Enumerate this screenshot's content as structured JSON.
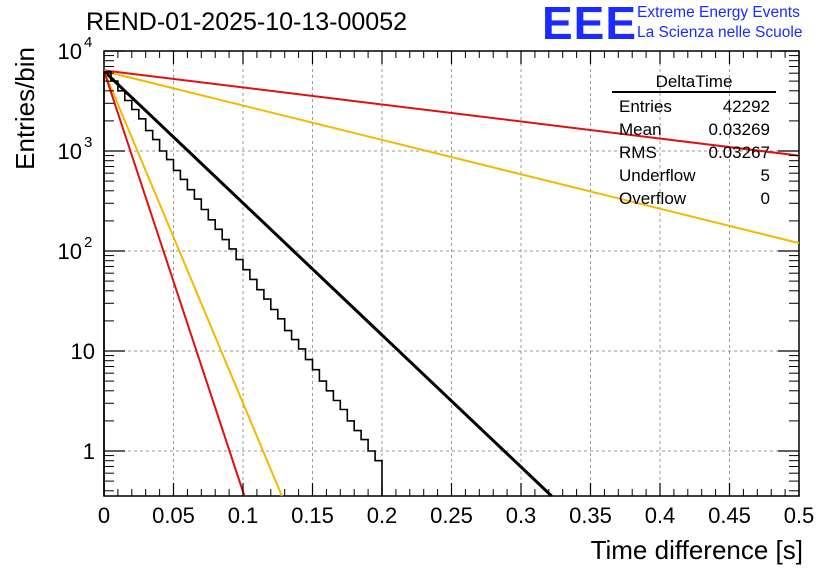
{
  "header": {
    "run_title": "REND-01-2025-10-13-00052",
    "logo_text": "EEE",
    "logo_line1": "Extreme Energy Events",
    "logo_line2": "La Scienza nelle Scuole"
  },
  "stats": {
    "title": "DeltaTime",
    "rows": [
      {
        "label": "Entries",
        "value": "42292"
      },
      {
        "label": "Mean",
        "value": "0.03269"
      },
      {
        "label": "RMS",
        "value": "0.03267"
      },
      {
        "label": "Underflow",
        "value": "5"
      },
      {
        "label": "Overflow",
        "value": "0"
      }
    ]
  },
  "colors": {
    "histogram": "#000000",
    "fit": "#000000",
    "red": "#e01010",
    "yellow": "#f5b800",
    "grid": "#9a9a9a"
  },
  "chart_data": {
    "type": "histogram",
    "xlabel": "Time difference [s]",
    "ylabel": "Entries/bin",
    "xlim": [
      0,
      0.5
    ],
    "ylim_log10": [
      -0.45,
      4.0
    ],
    "x_ticks": [
      {
        "v": 0,
        "label": "0"
      },
      {
        "v": 0.05,
        "label": "0.05"
      },
      {
        "v": 0.1,
        "label": "0.1"
      },
      {
        "v": 0.15,
        "label": "0.15"
      },
      {
        "v": 0.2,
        "label": "0.2"
      },
      {
        "v": 0.25,
        "label": "0.25"
      },
      {
        "v": 0.3,
        "label": "0.3"
      },
      {
        "v": 0.35,
        "label": "0.35"
      },
      {
        "v": 0.4,
        "label": "0.4"
      },
      {
        "v": 0.45,
        "label": "0.45"
      },
      {
        "v": 0.5,
        "label": "0.5"
      }
    ],
    "y_ticks": [
      {
        "v": 1,
        "base": "1",
        "exp": ""
      },
      {
        "v": 10,
        "base": "10",
        "exp": ""
      },
      {
        "v": 100,
        "base": "10",
        "exp": "2"
      },
      {
        "v": 1000,
        "base": "10",
        "exp": "3"
      },
      {
        "v": 10000,
        "base": "10",
        "exp": "4"
      }
    ],
    "bin_width": 0.005,
    "bin_counts": [
      6200,
      5000,
      4000,
      3200,
      2600,
      2100,
      1600,
      1300,
      1000,
      820,
      640,
      520,
      410,
      330,
      260,
      205,
      165,
      130,
      105,
      82,
      65,
      52,
      41,
      33,
      26,
      21,
      16,
      13,
      10.5,
      8.2,
      6.5,
      5,
      4,
      3.2,
      2.6,
      2,
      1.6,
      1.3,
      1,
      0.8
    ],
    "series": [
      {
        "name": "fit",
        "color": "#000000",
        "x": [
          0,
          0.322
        ],
        "y": [
          6300,
          0.35
        ]
      },
      {
        "name": "red-slow",
        "color": "#e01010",
        "x": [
          0,
          0.5
        ],
        "y": [
          6400,
          900
        ]
      },
      {
        "name": "yellow-slow",
        "color": "#f5b800",
        "x": [
          0,
          0.5
        ],
        "y": [
          6300,
          120
        ]
      },
      {
        "name": "yellow-fast",
        "color": "#f5b800",
        "x": [
          0,
          0.128
        ],
        "y": [
          6300,
          0.35
        ]
      },
      {
        "name": "red-fast",
        "color": "#e01010",
        "x": [
          0,
          0.101
        ],
        "y": [
          6300,
          0.35
        ]
      }
    ]
  }
}
